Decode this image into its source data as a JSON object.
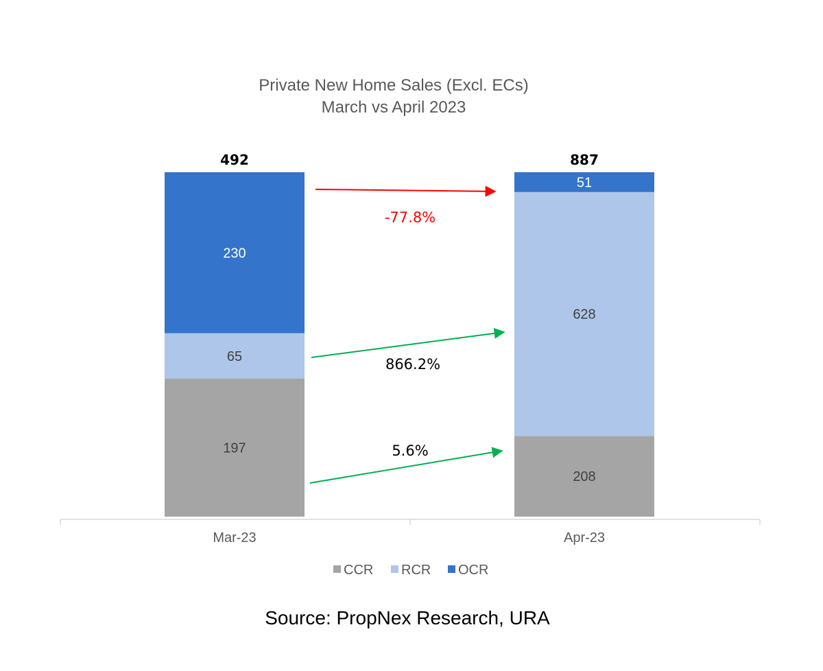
{
  "chart_data": {
    "type": "bar",
    "stacked": true,
    "title": [
      "Private New Home Sales (Excl. ECs)",
      "March vs April 2023"
    ],
    "categories": [
      "Mar-23",
      "Apr-23"
    ],
    "series": [
      {
        "name": "CCR",
        "values": [
          197,
          208
        ],
        "color": "#a5a5a5",
        "label_color": "#404040"
      },
      {
        "name": "RCR",
        "values": [
          65,
          628
        ],
        "color": "#adc6e9",
        "label_color": "#404040"
      },
      {
        "name": "OCR",
        "values": [
          230,
          51
        ],
        "color": "#3474cb",
        "label_color": "#ffffff"
      }
    ],
    "totals": [
      "492",
      "887"
    ],
    "annotations": [
      {
        "series": "OCR",
        "text": "-77.8%",
        "color": "#ff0000"
      },
      {
        "series": "RCR",
        "text": "866.2%",
        "color": "#00b050"
      },
      {
        "series": "CCR",
        "text": "5.6%",
        "color": "#00b050"
      }
    ],
    "legend_position": "bottom",
    "grid": false
  },
  "source": "Source: PropNex Research, URA"
}
